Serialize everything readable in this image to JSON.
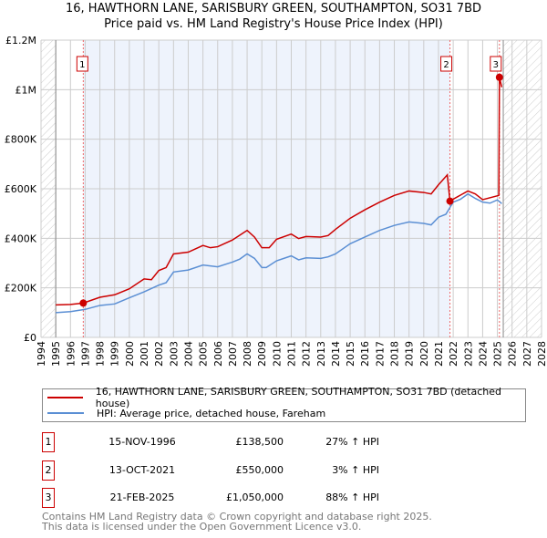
{
  "chart_data": {
    "type": "line",
    "title": "16, HAWTHORN LANE, SARISBURY GREEN, SOUTHAMPTON, SO31 7BD",
    "subtitle": "Price paid vs. HM Land Registry's House Price Index (HPI)",
    "xlim": [
      1994,
      2028
    ],
    "ylim": [
      0,
      1200000
    ],
    "x_ticks": [
      "1994",
      "1995",
      "1996",
      "1997",
      "1998",
      "1999",
      "2000",
      "2001",
      "2002",
      "2003",
      "2004",
      "2005",
      "2006",
      "2007",
      "2008",
      "2009",
      "2010",
      "2011",
      "2012",
      "2013",
      "2014",
      "2015",
      "2016",
      "2017",
      "2018",
      "2019",
      "2020",
      "2021",
      "2022",
      "2023",
      "2024",
      "2025",
      "2026",
      "2027",
      "2028"
    ],
    "y_ticks": [
      {
        "v": 0,
        "label": "£0"
      },
      {
        "v": 200000,
        "label": "£200K"
      },
      {
        "v": 400000,
        "label": "£400K"
      },
      {
        "v": 600000,
        "label": "£600K"
      },
      {
        "v": 800000,
        "label": "£800K"
      },
      {
        "v": 1000000,
        "label": "£1M"
      },
      {
        "v": 1200000,
        "label": "£1.2M"
      }
    ],
    "grid": true,
    "data_range": [
      1995,
      2025.4
    ],
    "series": [
      {
        "name": "16, HAWTHORN LANE, SARISBURY GREEN, SOUTHAMPTON, SO31 7BD (detached house)",
        "color": "#cc0000",
        "x": [
          1995,
          1996,
          1996.87,
          1998,
          1999,
          2000,
          2001,
          2001.5,
          2002,
          2002.5,
          2003,
          2004,
          2005,
          2005.5,
          2006,
          2007,
          2008,
          2008.5,
          2009,
          2009.5,
          2010,
          2011,
          2011.5,
          2012,
          2013,
          2013.5,
          2014,
          2015,
          2016,
          2017,
          2018,
          2019,
          2020,
          2020.5,
          2021,
          2021.6,
          2021.78,
          2022,
          2023,
          2023.5,
          2024,
          2025.1,
          2025.14,
          2025.3
        ],
        "y": [
          131000,
          133000,
          138500,
          162000,
          172000,
          196000,
          236000,
          233000,
          270000,
          282000,
          337000,
          344000,
          371000,
          362000,
          366000,
          393000,
          432000,
          405000,
          362000,
          362000,
          396000,
          417000,
          399000,
          407000,
          405000,
          411000,
          436000,
          481000,
          515000,
          546000,
          573000,
          591000,
          585000,
          579000,
          616000,
          656000,
          550000,
          558000,
          591000,
          579000,
          556000,
          573000,
          1050000,
          1010000
        ]
      },
      {
        "name": "HPI: Average price, detached house, Fareham",
        "color": "#5b8fd4",
        "x": [
          1995,
          1996,
          1997,
          1998,
          1999,
          2000,
          2001,
          2002,
          2002.5,
          2003,
          2004,
          2005,
          2006,
          2007,
          2007.5,
          2008,
          2008.5,
          2009,
          2009.3,
          2010,
          2011,
          2011.5,
          2012,
          2013,
          2013.5,
          2014,
          2015,
          2016,
          2017,
          2018,
          2019,
          2020,
          2020.5,
          2021,
          2021.5,
          2022,
          2022.5,
          2023,
          2023.5,
          2024,
          2024.5,
          2025,
          2025.3
        ],
        "y": [
          100000,
          104000,
          113000,
          129000,
          135000,
          160000,
          184000,
          211000,
          221000,
          264000,
          272000,
          292000,
          285000,
          304000,
          316000,
          337000,
          319000,
          282000,
          282000,
          309000,
          329000,
          313000,
          321000,
          319000,
          325000,
          337000,
          378000,
          405000,
          432000,
          452000,
          466000,
          460000,
          454000,
          485000,
          497000,
          546000,
          558000,
          579000,
          561000,
          546000,
          542000,
          555000,
          540000
        ]
      }
    ],
    "sales": [
      {
        "n": "1",
        "x": 1996.87,
        "y": 138500,
        "date": "15-NOV-1996",
        "price": "£138,500",
        "hpi": "27% ↑ HPI"
      },
      {
        "n": "2",
        "x": 2021.78,
        "y": 550000,
        "date": "13-OCT-2021",
        "price": "£550,000",
        "hpi": "3% ↑ HPI"
      },
      {
        "n": "3",
        "x": 2025.14,
        "y": 1050000,
        "date": "21-FEB-2025",
        "price": "£1,050,000",
        "hpi": "88% ↑ HPI"
      }
    ]
  },
  "legend": {
    "red": "16, HAWTHORN LANE, SARISBURY GREEN, SOUTHAMPTON, SO31 7BD (detached house)",
    "blue": "HPI: Average price, detached house, Fareham"
  },
  "footer": {
    "line1": "Contains HM Land Registry data © Crown copyright and database right 2025.",
    "line2": "This data is licensed under the Open Government Licence v3.0."
  }
}
